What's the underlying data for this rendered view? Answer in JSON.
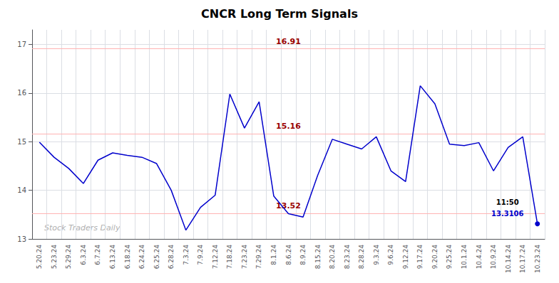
{
  "chart_data": {
    "type": "line",
    "title": "CNCR Long Term Signals",
    "categories": [
      "5.20.24",
      "5.23.24",
      "5.29.24",
      "6.3.24",
      "6.7.24",
      "6.13.24",
      "6.18.24",
      "6.24.24",
      "6.25.24",
      "6.28.24",
      "7.3.24",
      "7.9.24",
      "7.12.24",
      "7.18.24",
      "7.23.24",
      "7.29.24",
      "8.1.24",
      "8.6.24",
      "8.9.24",
      "8.15.24",
      "8.20.24",
      "8.23.24",
      "8.28.24",
      "9.3.24",
      "9.6.24",
      "9.12.24",
      "9.17.24",
      "9.20.24",
      "9.25.24",
      "10.1.24",
      "10.4.24",
      "10.9.24",
      "10.14.24",
      "10.17.24",
      "10.23.24"
    ],
    "values": [
      14.99,
      14.68,
      14.45,
      14.14,
      14.62,
      14.77,
      14.72,
      14.68,
      14.55,
      14.0,
      13.18,
      13.65,
      13.9,
      15.98,
      15.28,
      15.82,
      13.88,
      13.52,
      13.45,
      14.31,
      15.05,
      14.95,
      14.85,
      15.1,
      14.4,
      14.18,
      16.15,
      15.78,
      14.95,
      14.92,
      14.98,
      14.4,
      14.88,
      15.1,
      13.3106
    ],
    "color": "#0000cc",
    "marker": "circle",
    "ylim": [
      13.0,
      17.3
    ],
    "yticks": [
      13,
      14,
      15,
      16,
      17
    ],
    "grid": true,
    "hlines": [
      {
        "value": 16.91,
        "label": "16.91"
      },
      {
        "value": 15.16,
        "label": "15.16"
      },
      {
        "value": 13.52,
        "label": "13.52"
      }
    ],
    "hline_color": "#ffb3b3",
    "hline_label_color": "#990000",
    "annotations": [
      {
        "text": "11:50",
        "color": "#000000"
      },
      {
        "text": "13.3106",
        "color": "#0000cc"
      }
    ],
    "watermark": "Stock Traders Daily"
  }
}
